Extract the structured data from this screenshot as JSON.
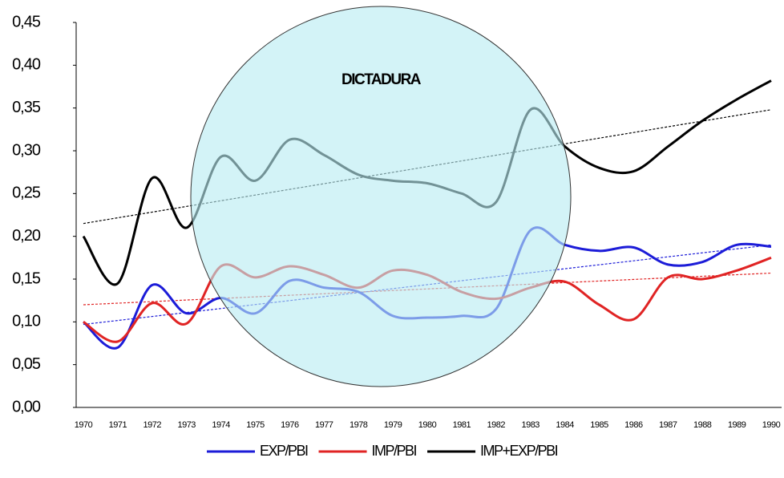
{
  "chart_data": {
    "type": "line",
    "annotation": "DICTADURA",
    "x": [
      1970,
      1971,
      1972,
      1973,
      1974,
      1975,
      1976,
      1977,
      1978,
      1979,
      1980,
      1981,
      1982,
      1983,
      1984,
      1985,
      1986,
      1987,
      1988,
      1989,
      1990
    ],
    "xlim": [
      1970,
      1990
    ],
    "ylim": [
      0,
      0.45
    ],
    "yticks": [
      {
        "value": 0,
        "label": "0,00"
      },
      {
        "value": 0.05,
        "label": "0,05"
      },
      {
        "value": 0.1,
        "label": "0,10"
      },
      {
        "value": 0.15,
        "label": "0,15"
      },
      {
        "value": 0.2,
        "label": "0,20"
      },
      {
        "value": 0.25,
        "label": "0,25"
      },
      {
        "value": 0.3,
        "label": "0,30"
      },
      {
        "value": 0.35,
        "label": "0,35"
      },
      {
        "value": 0.4,
        "label": "0,40"
      },
      {
        "value": 0.45,
        "label": "0,45"
      }
    ],
    "legend": "bottom",
    "series": [
      {
        "name": "EXP/PBI",
        "color": "#1c1cd8",
        "trend": [
          0.097,
          0.19
        ],
        "values": [
          0.1,
          0.07,
          0.143,
          0.11,
          0.128,
          0.11,
          0.148,
          0.14,
          0.135,
          0.107,
          0.105,
          0.107,
          0.115,
          0.207,
          0.19,
          0.183,
          0.187,
          0.167,
          0.17,
          0.19,
          0.188
        ]
      },
      {
        "name": "IMP/PBI",
        "color": "#e02424",
        "trend": [
          0.12,
          0.157
        ],
        "values": [
          0.1,
          0.077,
          0.122,
          0.098,
          0.165,
          0.152,
          0.165,
          0.155,
          0.14,
          0.16,
          0.155,
          0.135,
          0.127,
          0.14,
          0.147,
          0.12,
          0.103,
          0.152,
          0.15,
          0.16,
          0.175
        ]
      },
      {
        "name": "IMP+EXP/PBI",
        "color": "#000000",
        "trend": [
          0.215,
          0.348
        ],
        "values": [
          0.2,
          0.145,
          0.268,
          0.21,
          0.293,
          0.265,
          0.313,
          0.295,
          0.272,
          0.265,
          0.262,
          0.25,
          0.24,
          0.348,
          0.305,
          0.28,
          0.276,
          0.305,
          0.335,
          0.36,
          0.382
        ]
      }
    ]
  }
}
